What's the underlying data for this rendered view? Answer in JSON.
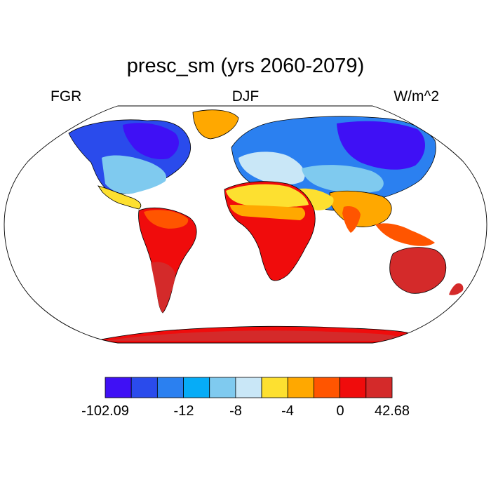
{
  "title": "presc_sm (yrs 2060-2079)",
  "left_label": "FGR",
  "center_label": "DJF",
  "right_label": "W/m^2",
  "projection": "robinson",
  "colorbar": {
    "colors": [
      "#3f10f5",
      "#2a4bec",
      "#2b80f0",
      "#06acf7",
      "#7fcaef",
      "#c9e7f7",
      "#fde030",
      "#ffa800",
      "#ff5500",
      "#f00c0c",
      "#d42a2a"
    ],
    "labels": [
      "-102.09",
      "-12",
      "-8",
      "-4",
      "0",
      "42.68"
    ]
  }
}
